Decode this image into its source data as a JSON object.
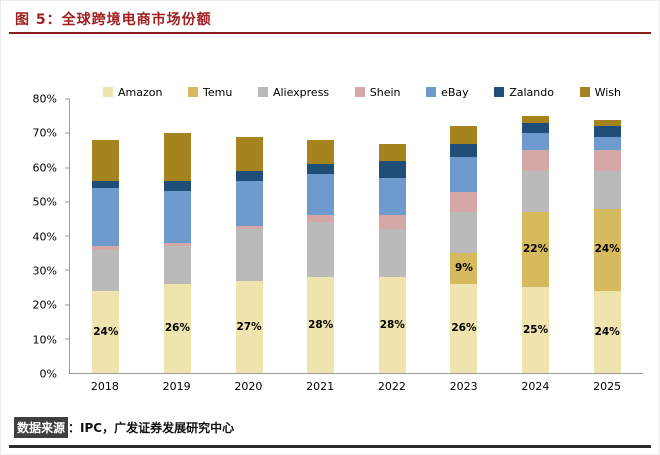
{
  "header": {
    "title": "图 5：全球跨境电商市场份额",
    "accent_color": "#a01f1f"
  },
  "chart_data": {
    "type": "bar",
    "subtype": "stacked",
    "title": "全球跨境电商市场份额",
    "categories": [
      "2018",
      "2019",
      "2020",
      "2021",
      "2022",
      "2023",
      "2024",
      "2025"
    ],
    "series": [
      {
        "name": "Amazon",
        "color": "#f0e4ae",
        "values": [
          24,
          26,
          27,
          28,
          28,
          26,
          25,
          24
        ],
        "labels": [
          "24%",
          "26%",
          "27%",
          "28%",
          "28%",
          "26%",
          "25%",
          "24%"
        ]
      },
      {
        "name": "Temu",
        "color": "#d7b95e",
        "values": [
          0,
          0,
          0,
          0,
          0,
          9,
          22,
          24
        ],
        "labels": [
          "",
          "",
          "",
          "",
          "",
          "9%",
          "22%",
          "24%"
        ]
      },
      {
        "name": "Aliexpress",
        "color": "#bababa",
        "values": [
          12,
          11,
          15,
          16,
          14,
          12,
          12,
          11
        ],
        "labels": [
          "",
          "",
          "",
          "",
          "",
          "",
          "",
          ""
        ]
      },
      {
        "name": "Shein",
        "color": "#d5a7a7",
        "values": [
          1,
          1,
          1,
          2,
          4,
          6,
          6,
          6
        ],
        "labels": [
          "",
          "",
          "",
          "",
          "",
          "",
          "",
          ""
        ]
      },
      {
        "name": "eBay",
        "color": "#6f9ace",
        "values": [
          17,
          15,
          13,
          12,
          11,
          10,
          5,
          4
        ],
        "labels": [
          "",
          "",
          "",
          "",
          "",
          "",
          "",
          ""
        ]
      },
      {
        "name": "Zalando",
        "color": "#1f4e79",
        "values": [
          2,
          3,
          3,
          3,
          5,
          4,
          3,
          3
        ],
        "labels": [
          "",
          "",
          "",
          "",
          "",
          "",
          "",
          ""
        ]
      },
      {
        "name": "Wish",
        "color": "#a5841f",
        "values": [
          12,
          14,
          10,
          7,
          5,
          5,
          2,
          2
        ],
        "labels": [
          "",
          "",
          "",
          "",
          "",
          "",
          "",
          ""
        ]
      }
    ],
    "totals": [
      68,
      70,
      69,
      68,
      67,
      72,
      75,
      74
    ],
    "ylim": [
      0,
      80
    ],
    "yticks": [
      "0%",
      "10%",
      "20%",
      "30%",
      "40%",
      "50%",
      "60%",
      "70%",
      "80%"
    ],
    "legend_position": "top",
    "grid": false
  },
  "footer": {
    "source_label": "数据来源",
    "source_text": "：IPC，广发证券发展研究中心"
  }
}
